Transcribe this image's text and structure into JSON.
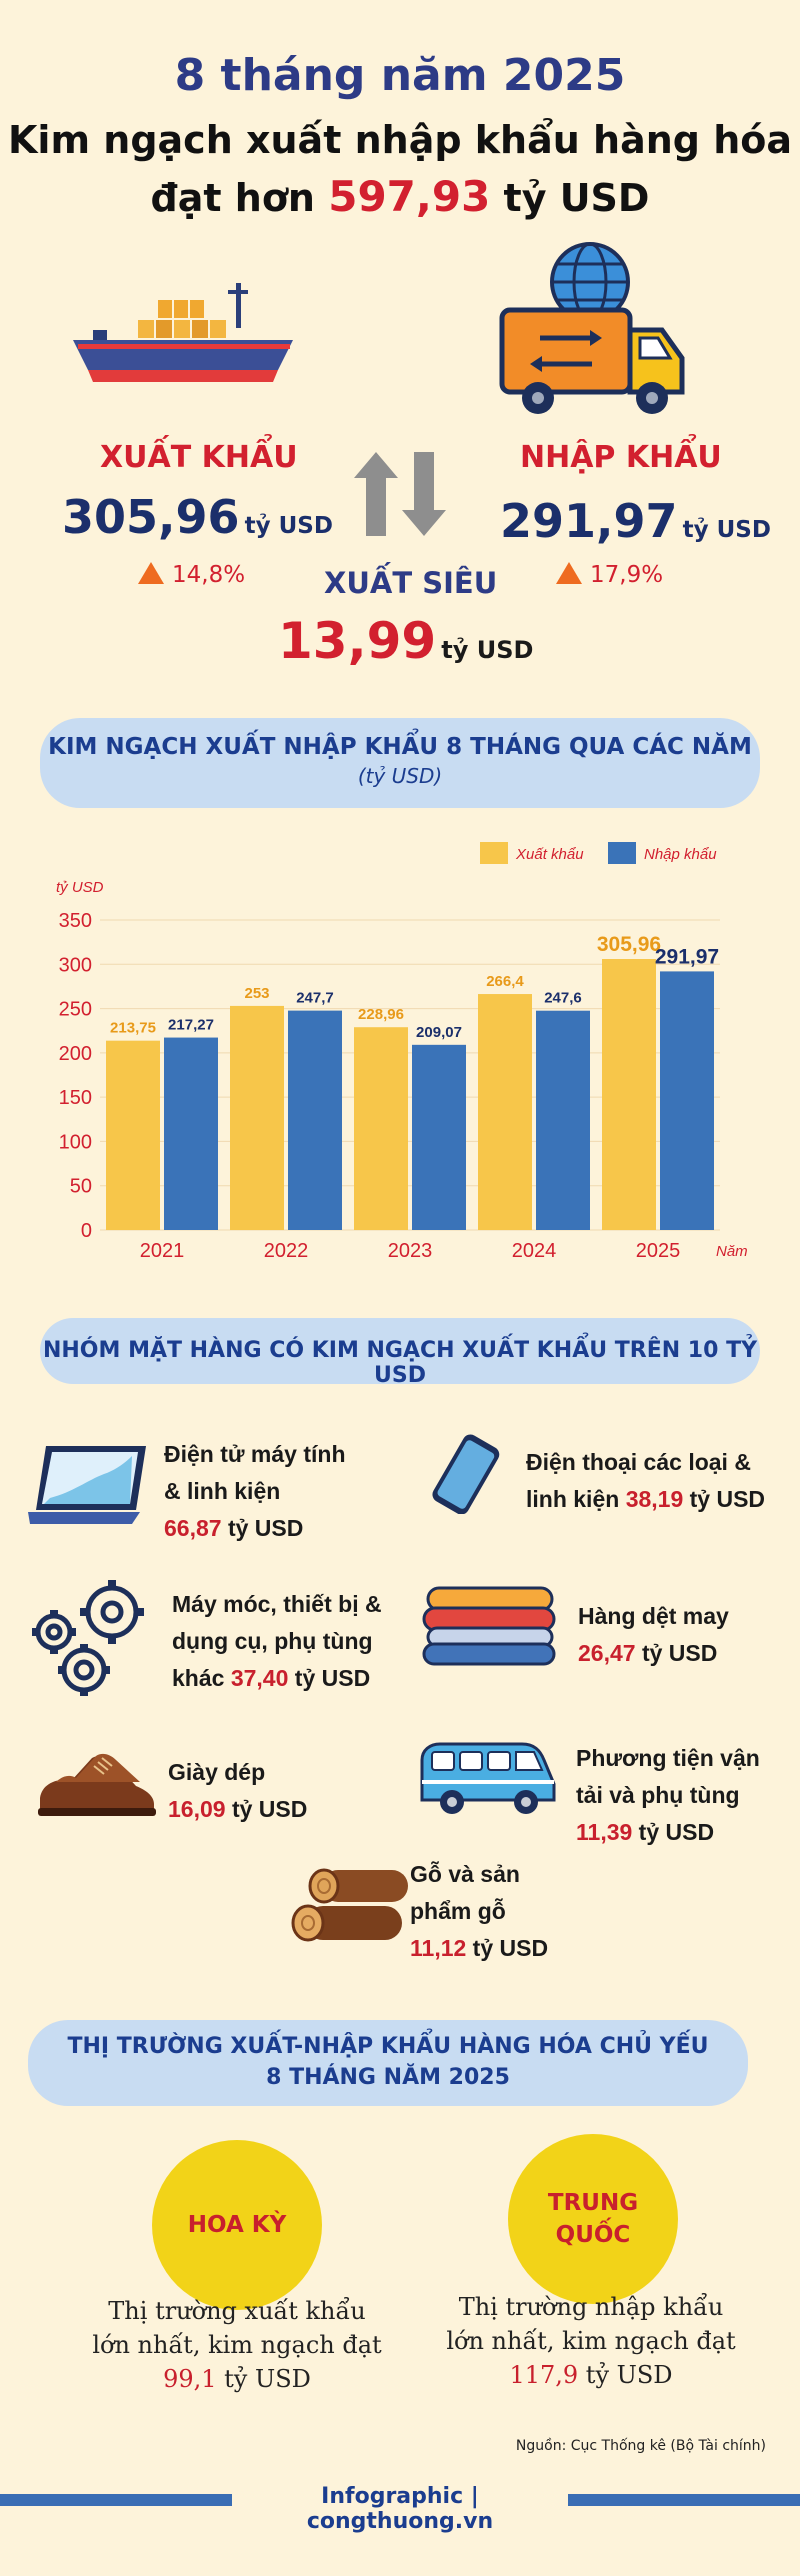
{
  "header": {
    "line1": "8 tháng năm 2025",
    "line2": "Kim ngạch xuất nhập khẩu hàng hóa",
    "line3_prefix": "đạt hơn ",
    "line3_value": "597,93",
    "line3_suffix": " tỷ USD"
  },
  "summary": {
    "export": {
      "label": "XUẤT KHẨU",
      "value": "305,96",
      "unit": "tỷ USD",
      "growth": "14,8%"
    },
    "import": {
      "label": "NHẬP KHẨU",
      "value": "291,97",
      "unit": "tỷ USD",
      "growth": "17,9%"
    },
    "surplus": {
      "label": "XUẤT SIÊU",
      "value": "13,99",
      "unit": "tỷ USD"
    }
  },
  "chart_section": {
    "title": "KIM NGẠCH XUẤT NHẬP KHẨU 8 THÁNG QUA CÁC NĂM",
    "subtitle": "(tỷ USD)"
  },
  "chart_data": {
    "type": "bar",
    "categories": [
      "2021",
      "2022",
      "2023",
      "2024",
      "2025"
    ],
    "series": [
      {
        "name": "Xuất khẩu",
        "values": [
          213.75,
          253,
          228.96,
          266.4,
          305.96
        ],
        "labels": [
          "213,75",
          "253",
          "228,96",
          "266,4",
          "305,96"
        ],
        "color": "#f7c64a"
      },
      {
        "name": "Nhập khẩu",
        "values": [
          217.27,
          247.7,
          209.07,
          247.6,
          291.97
        ],
        "labels": [
          "217,27",
          "247,7",
          "209,07",
          "247,6",
          "291,97"
        ],
        "color": "#3a73b8"
      }
    ],
    "ylabel": "tỷ USD",
    "xlabel": "Năm",
    "yticks": [
      "0",
      "50",
      "100",
      "150",
      "200",
      "250",
      "300",
      "350"
    ],
    "ylim": [
      0,
      350
    ],
    "legend": "top-right",
    "grid": true
  },
  "products_section": {
    "title": "NHÓM MẶT HÀNG CÓ KIM NGẠCH XUẤT KHẨU TRÊN 10 TỶ USD",
    "items": [
      {
        "lines": [
          "Điện tử máy tính",
          "& linh kiện"
        ],
        "value": "66,87",
        "unit": " tỷ USD"
      },
      {
        "lines": [
          "Điện thoại các loại &"
        ],
        "value_prefix": "linh kiện ",
        "value": "38,19",
        "unit": " tỷ USD"
      },
      {
        "lines": [
          "Máy móc, thiết bị &",
          "dụng cụ, phụ tùng"
        ],
        "value_prefix": "khác ",
        "value": "37,40",
        "unit": " tỷ USD"
      },
      {
        "lines": [
          "Hàng dệt may"
        ],
        "value": "26,47",
        "unit": " tỷ USD"
      },
      {
        "lines": [
          "Giày dép"
        ],
        "value": "16,09",
        "unit": " tỷ USD"
      },
      {
        "lines": [
          "Phương tiện vận",
          "tải và phụ tùng"
        ],
        "value": "11,39",
        "unit": " tỷ USD"
      },
      {
        "lines": [
          "Gỗ và sản",
          "phẩm gỗ"
        ],
        "value": "11,12",
        "unit": " tỷ USD"
      }
    ]
  },
  "markets_section": {
    "title_line1": "THỊ TRƯỜNG XUẤT-NHẬP KHẨU HÀNG HÓA CHỦ YẾU",
    "title_line2": "8 THÁNG NĂM 2025",
    "export_market": {
      "name": "HOA KỲ",
      "line1": "Thị trường xuất khẩu",
      "line2": "lớn nhất, kim ngạch đạt",
      "value": "99,1",
      "unit": " tỷ USD"
    },
    "import_market": {
      "name_line1": "TRUNG",
      "name_line2": "QUỐC",
      "line1": "Thị trường nhập khẩu",
      "line2": "lớn nhất, kim ngạch đạt",
      "value": "117,9",
      "unit": " tỷ USD"
    }
  },
  "footer": {
    "source": "Nguồn: Cục Thống kê (Bộ Tài chính)",
    "brand": "Infographic | congthuong.vn"
  },
  "colors": {
    "background": "#fdf3da",
    "accent_red": "#d2202f",
    "navy": "#1b2f6b",
    "pill": "#c8dcf2",
    "export_bar": "#f7c64a",
    "import_bar": "#3a73b8"
  },
  "icons": [
    "cargo-ship-icon",
    "delivery-truck-globe-icon",
    "up-down-arrows-icon",
    "laptop-icon",
    "smartphone-icon",
    "gears-icon",
    "folded-fabric-icon",
    "shoe-icon",
    "van-icon",
    "wood-logs-icon"
  ]
}
